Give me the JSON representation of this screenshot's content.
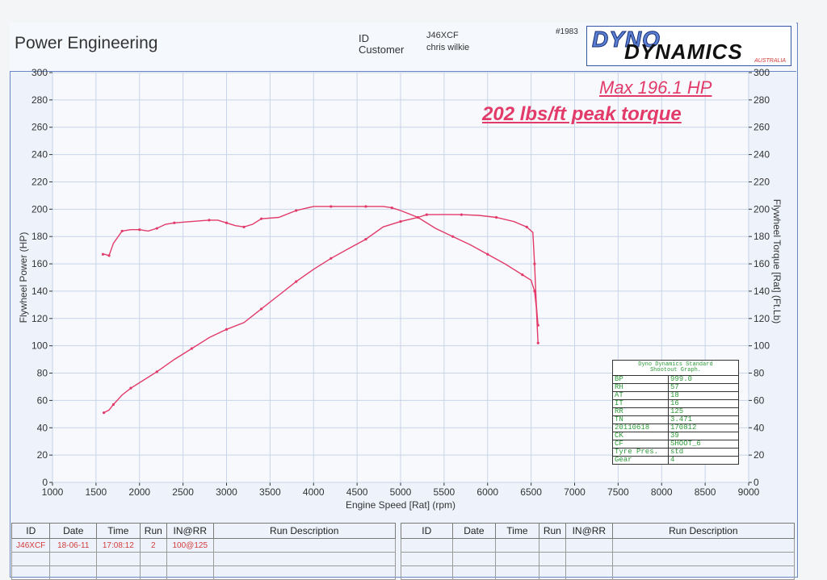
{
  "header": {
    "company": "Power Engineering",
    "id_label": "ID",
    "id_value": "J46XCF",
    "customer_label": "Customer",
    "customer_value": "chris wilkie",
    "sheet_number": "#1983"
  },
  "logo": {
    "line1": "DYNO",
    "line2": "DYNAMICS",
    "tag": "AUSTRALIA"
  },
  "annotations": {
    "max_power": "Max 196.1 HP",
    "peak_torque": "202 lbs/ft peak torque"
  },
  "colors": {
    "curve": "#e23b6a",
    "grid": "#c9d4e8",
    "axis": "#333333"
  },
  "chart_data": {
    "type": "line",
    "xlabel": "Engine Speed [Rat] (rpm)",
    "ylabel": "Flywheel Power (HP)",
    "y2label": "Flywheel Torque [Rat] (Ft.Lb)",
    "xlim": [
      1000,
      9000
    ],
    "ylim": [
      0,
      300
    ],
    "y2lim": [
      0,
      300
    ],
    "xticks": [
      1000,
      1500,
      2000,
      2500,
      3000,
      3500,
      4000,
      4500,
      5000,
      5500,
      6000,
      6500,
      7000,
      7500,
      8000,
      8500,
      9000
    ],
    "yticks": [
      0,
      20,
      40,
      60,
      80,
      100,
      120,
      140,
      160,
      180,
      200,
      220,
      240,
      260,
      280,
      300
    ],
    "grid": true,
    "series": [
      {
        "axis": "left",
        "x": [
          1590,
          1650,
          1700,
          1800,
          1900,
          2000,
          2200,
          2400,
          2600,
          2800,
          3000,
          3200,
          3400,
          3600,
          3800,
          4000,
          4200,
          4400,
          4600,
          4800,
          5000,
          5200,
          5300,
          5500,
          5700,
          5900,
          6100,
          6300,
          6450,
          6520,
          6540,
          6560,
          6580
        ],
        "y": [
          51,
          53,
          57,
          64,
          69,
          73,
          81,
          90,
          98,
          106,
          112,
          117,
          127,
          137,
          147,
          156,
          164,
          171,
          178,
          187,
          191,
          194,
          196,
          196.1,
          196,
          195.5,
          194,
          191,
          187,
          183,
          160,
          130,
          115
        ]
      },
      {
        "axis": "right",
        "x": [
          1580,
          1600,
          1650,
          1700,
          1800,
          1900,
          2000,
          2100,
          2200,
          2300,
          2400,
          2600,
          2800,
          2900,
          3000,
          3100,
          3200,
          3300,
          3400,
          3600,
          3800,
          4000,
          4200,
          4400,
          4600,
          4800,
          4900,
          5000,
          5200,
          5400,
          5600,
          5800,
          6000,
          6200,
          6400,
          6500,
          6540,
          6560,
          6580
        ],
        "y": [
          167,
          167,
          166,
          175,
          184,
          185,
          185,
          184,
          186,
          189,
          190,
          191,
          192,
          192,
          190,
          188,
          187,
          189,
          193,
          194,
          199,
          202,
          202,
          202,
          202,
          202,
          201,
          199,
          194,
          186,
          180,
          174,
          167,
          160,
          152,
          148,
          140,
          128,
          102
        ]
      }
    ]
  },
  "shootout": {
    "title_line1": "Dyno Dynamics Standard",
    "title_line2": "Shootout Graph.",
    "rows": [
      [
        "BP",
        "999.0"
      ],
      [
        "RH",
        "57"
      ],
      [
        "AT",
        "18"
      ],
      [
        "IT",
        "16"
      ],
      [
        "RR",
        "125"
      ],
      [
        "TN",
        "3.471"
      ],
      [
        "20110618",
        "170812"
      ],
      [
        "CK",
        "39"
      ],
      [
        "CF",
        "SHOOT_6"
      ],
      [
        "Tyre Pres.",
        "std"
      ],
      [
        "Gear",
        "4"
      ]
    ]
  },
  "runs_table": {
    "headers": [
      "ID",
      "Date",
      "Time",
      "Run",
      "IN@RR",
      "Run Description"
    ],
    "row": [
      "J46XCF",
      "18-06-11",
      "17:08:12",
      "2",
      "100@125",
      ""
    ]
  }
}
